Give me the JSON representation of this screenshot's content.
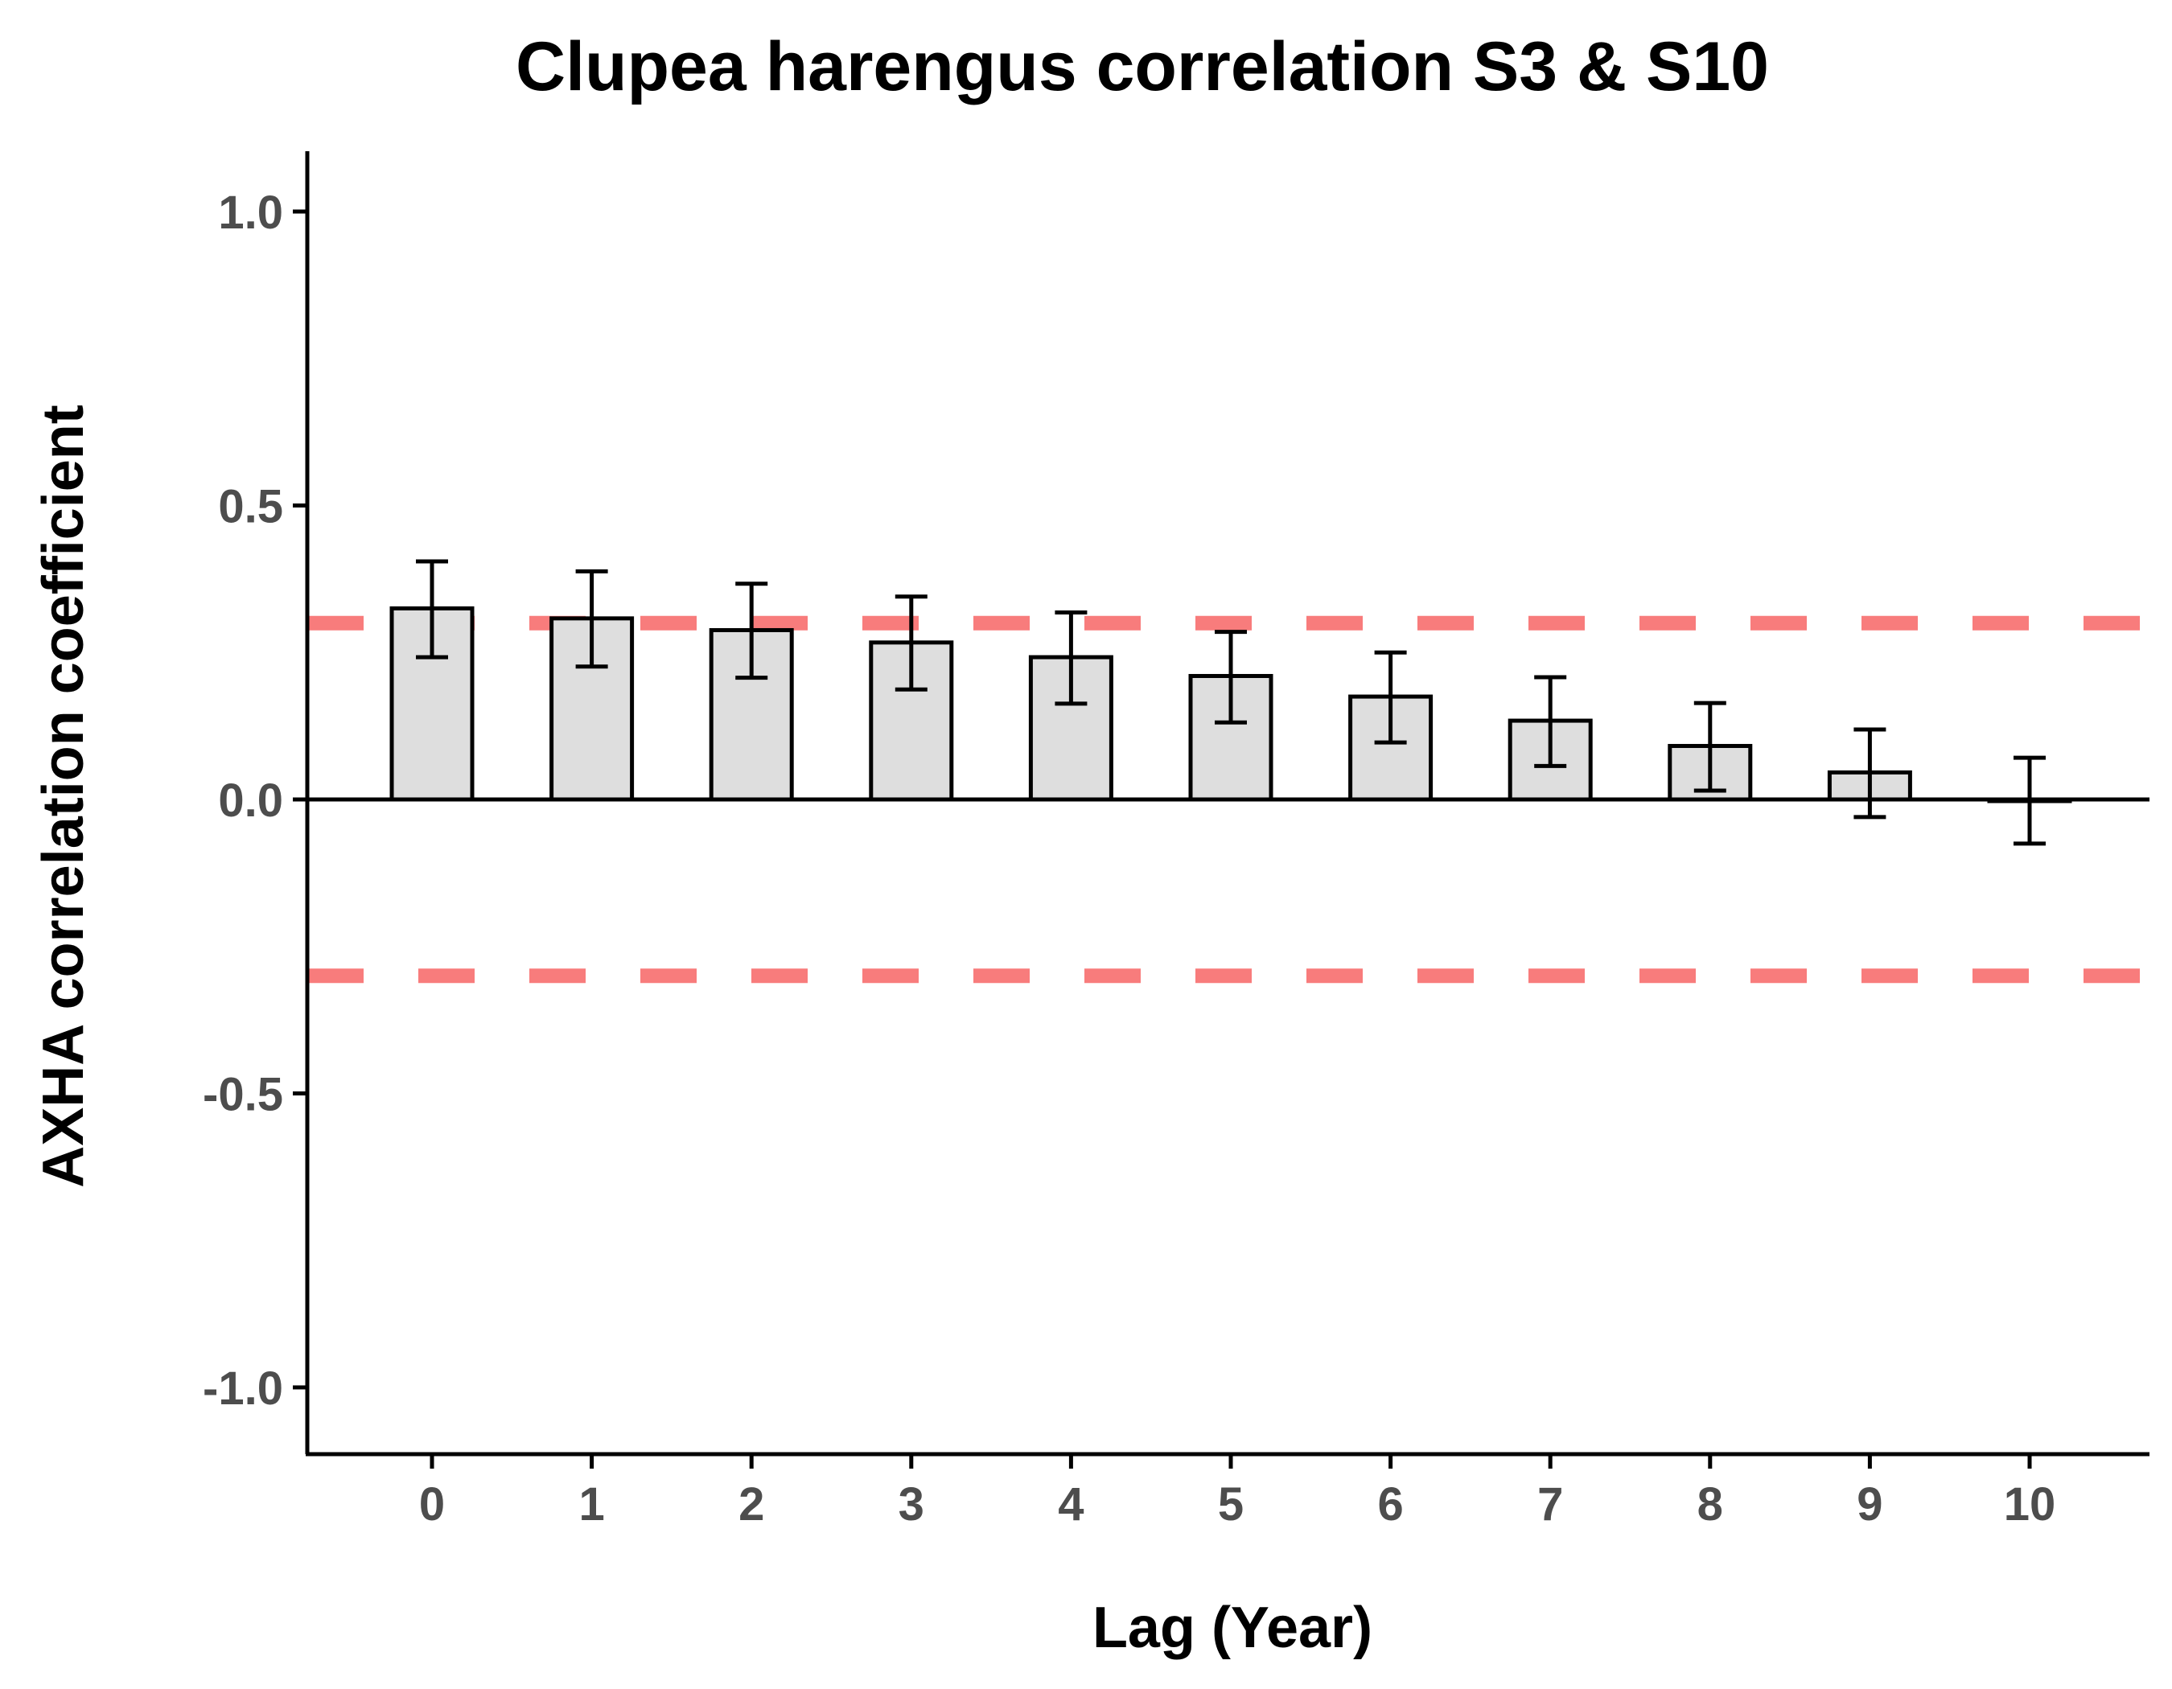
{
  "chart_data": {
    "type": "bar",
    "title": "Clupea harengus correlation S3 & S10",
    "xlabel": "Lag (Year)",
    "ylabel": "AXHA correlation coefficient",
    "categories": [
      "0",
      "1",
      "2",
      "3",
      "4",
      "5",
      "6",
      "7",
      "8",
      "9",
      "10"
    ],
    "values": [
      0.325,
      0.308,
      0.288,
      0.267,
      0.242,
      0.21,
      0.175,
      0.134,
      0.091,
      0.046,
      -0.002
    ],
    "error_lower": [
      0.242,
      0.226,
      0.207,
      0.187,
      0.163,
      0.131,
      0.097,
      0.057,
      0.015,
      -0.03,
      -0.075
    ],
    "error_upper": [
      0.405,
      0.388,
      0.367,
      0.345,
      0.318,
      0.285,
      0.25,
      0.208,
      0.164,
      0.119,
      0.071
    ],
    "reference_lines": [
      0.3,
      -0.3
    ],
    "ylim": [
      -1.1,
      1.1
    ],
    "yticks": [
      1.0,
      0.5,
      0.0,
      -0.5,
      -1.0
    ],
    "ytick_labels": [
      "1.0",
      "0.5",
      "0.0",
      "-0.5",
      "-1.0"
    ],
    "grid": false,
    "colors": {
      "bar_fill": "#dedede",
      "bar_stroke": "#000000",
      "reference_line": "#f87c7c",
      "axis": "#000000"
    }
  }
}
